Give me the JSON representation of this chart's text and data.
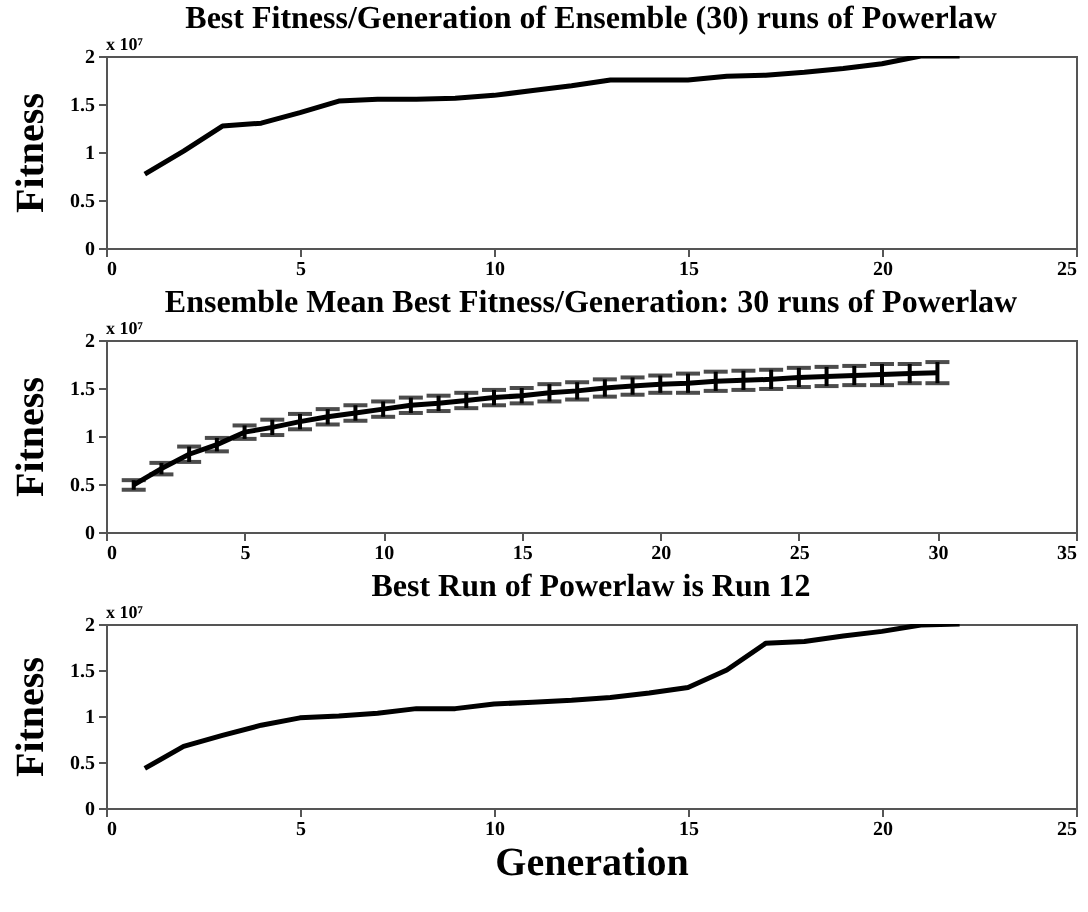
{
  "chart_data": [
    {
      "type": "line",
      "title": "Best Fitness/Generation of Ensemble (30) runs of Powerlaw",
      "ylabel": "Fitness",
      "annotations": [
        "x 10⁷"
      ],
      "x": [
        1,
        2,
        3,
        4,
        5,
        6,
        7,
        8,
        9,
        10,
        11,
        12,
        13,
        14,
        15,
        16,
        17,
        18,
        19,
        20,
        21,
        22
      ],
      "series": [
        {
          "color": "#000000",
          "values": [
            0.77,
            1.01,
            1.27,
            1.3,
            1.41,
            1.53,
            1.55,
            1.55,
            1.56,
            1.59,
            1.64,
            1.69,
            1.75,
            1.75,
            1.75,
            1.79,
            1.8,
            1.83,
            1.87,
            1.92,
            2.0,
            2.0
          ]
        }
      ],
      "xlim": [
        0,
        25
      ],
      "xticks": [
        0,
        5,
        10,
        15,
        20,
        25
      ],
      "ylim": [
        0,
        2
      ],
      "yticks": [
        0,
        0.5,
        1,
        1.5,
        2
      ],
      "grid": false,
      "marker": "none",
      "line_style": "solid"
    },
    {
      "type": "line",
      "title": "Ensemble Mean Best Fitness/Generation: 30 runs of Powerlaw",
      "ylabel": "Fitness",
      "annotations": [
        "x 10⁷"
      ],
      "x": [
        1,
        2,
        3,
        4,
        5,
        6,
        7,
        8,
        9,
        10,
        11,
        12,
        13,
        14,
        15,
        16,
        17,
        18,
        19,
        20,
        21,
        22,
        23,
        24,
        25,
        26,
        27,
        28,
        29,
        30
      ],
      "series": [
        {
          "color": "#000000",
          "values": [
            0.49,
            0.66,
            0.81,
            0.91,
            1.04,
            1.09,
            1.15,
            1.2,
            1.24,
            1.28,
            1.32,
            1.34,
            1.37,
            1.4,
            1.42,
            1.45,
            1.47,
            1.5,
            1.52,
            1.54,
            1.55,
            1.57,
            1.58,
            1.59,
            1.61,
            1.62,
            1.63,
            1.64,
            1.65,
            1.66
          ],
          "errors": [
            0.05,
            0.06,
            0.08,
            0.07,
            0.07,
            0.08,
            0.08,
            0.08,
            0.08,
            0.08,
            0.08,
            0.08,
            0.08,
            0.08,
            0.08,
            0.09,
            0.09,
            0.09,
            0.09,
            0.09,
            0.1,
            0.1,
            0.1,
            0.1,
            0.1,
            0.1,
            0.1,
            0.11,
            0.1,
            0.11
          ]
        }
      ],
      "xlim": [
        0,
        35
      ],
      "xticks": [
        0,
        5,
        10,
        15,
        20,
        25,
        30,
        35
      ],
      "ylim": [
        0,
        2
      ],
      "yticks": [
        0,
        0.5,
        1,
        1.5,
        2
      ],
      "grid": false,
      "marker": "none",
      "line_style": "solid"
    },
    {
      "type": "line",
      "title": "Best Run of Powerlaw is Run 12",
      "xlabel": "Generation",
      "ylabel": "Fitness",
      "annotations": [
        "x 10⁷"
      ],
      "x": [
        1,
        2,
        3,
        4,
        5,
        6,
        7,
        8,
        9,
        10,
        11,
        12,
        13,
        14,
        15,
        16,
        17,
        18,
        19,
        20,
        21,
        22
      ],
      "series": [
        {
          "color": "#000000",
          "values": [
            0.43,
            0.67,
            0.79,
            0.9,
            0.98,
            1.0,
            1.03,
            1.08,
            1.08,
            1.13,
            1.15,
            1.17,
            1.2,
            1.25,
            1.31,
            1.5,
            1.79,
            1.81,
            1.87,
            1.92,
            1.99,
            2.0
          ]
        }
      ],
      "xlim": [
        0,
        25
      ],
      "xticks": [
        0,
        5,
        10,
        15,
        20,
        25
      ],
      "ylim": [
        0,
        2
      ],
      "yticks": [
        0,
        0.5,
        1,
        1.5,
        2
      ],
      "grid": false,
      "marker": "none",
      "line_style": "solid"
    }
  ]
}
